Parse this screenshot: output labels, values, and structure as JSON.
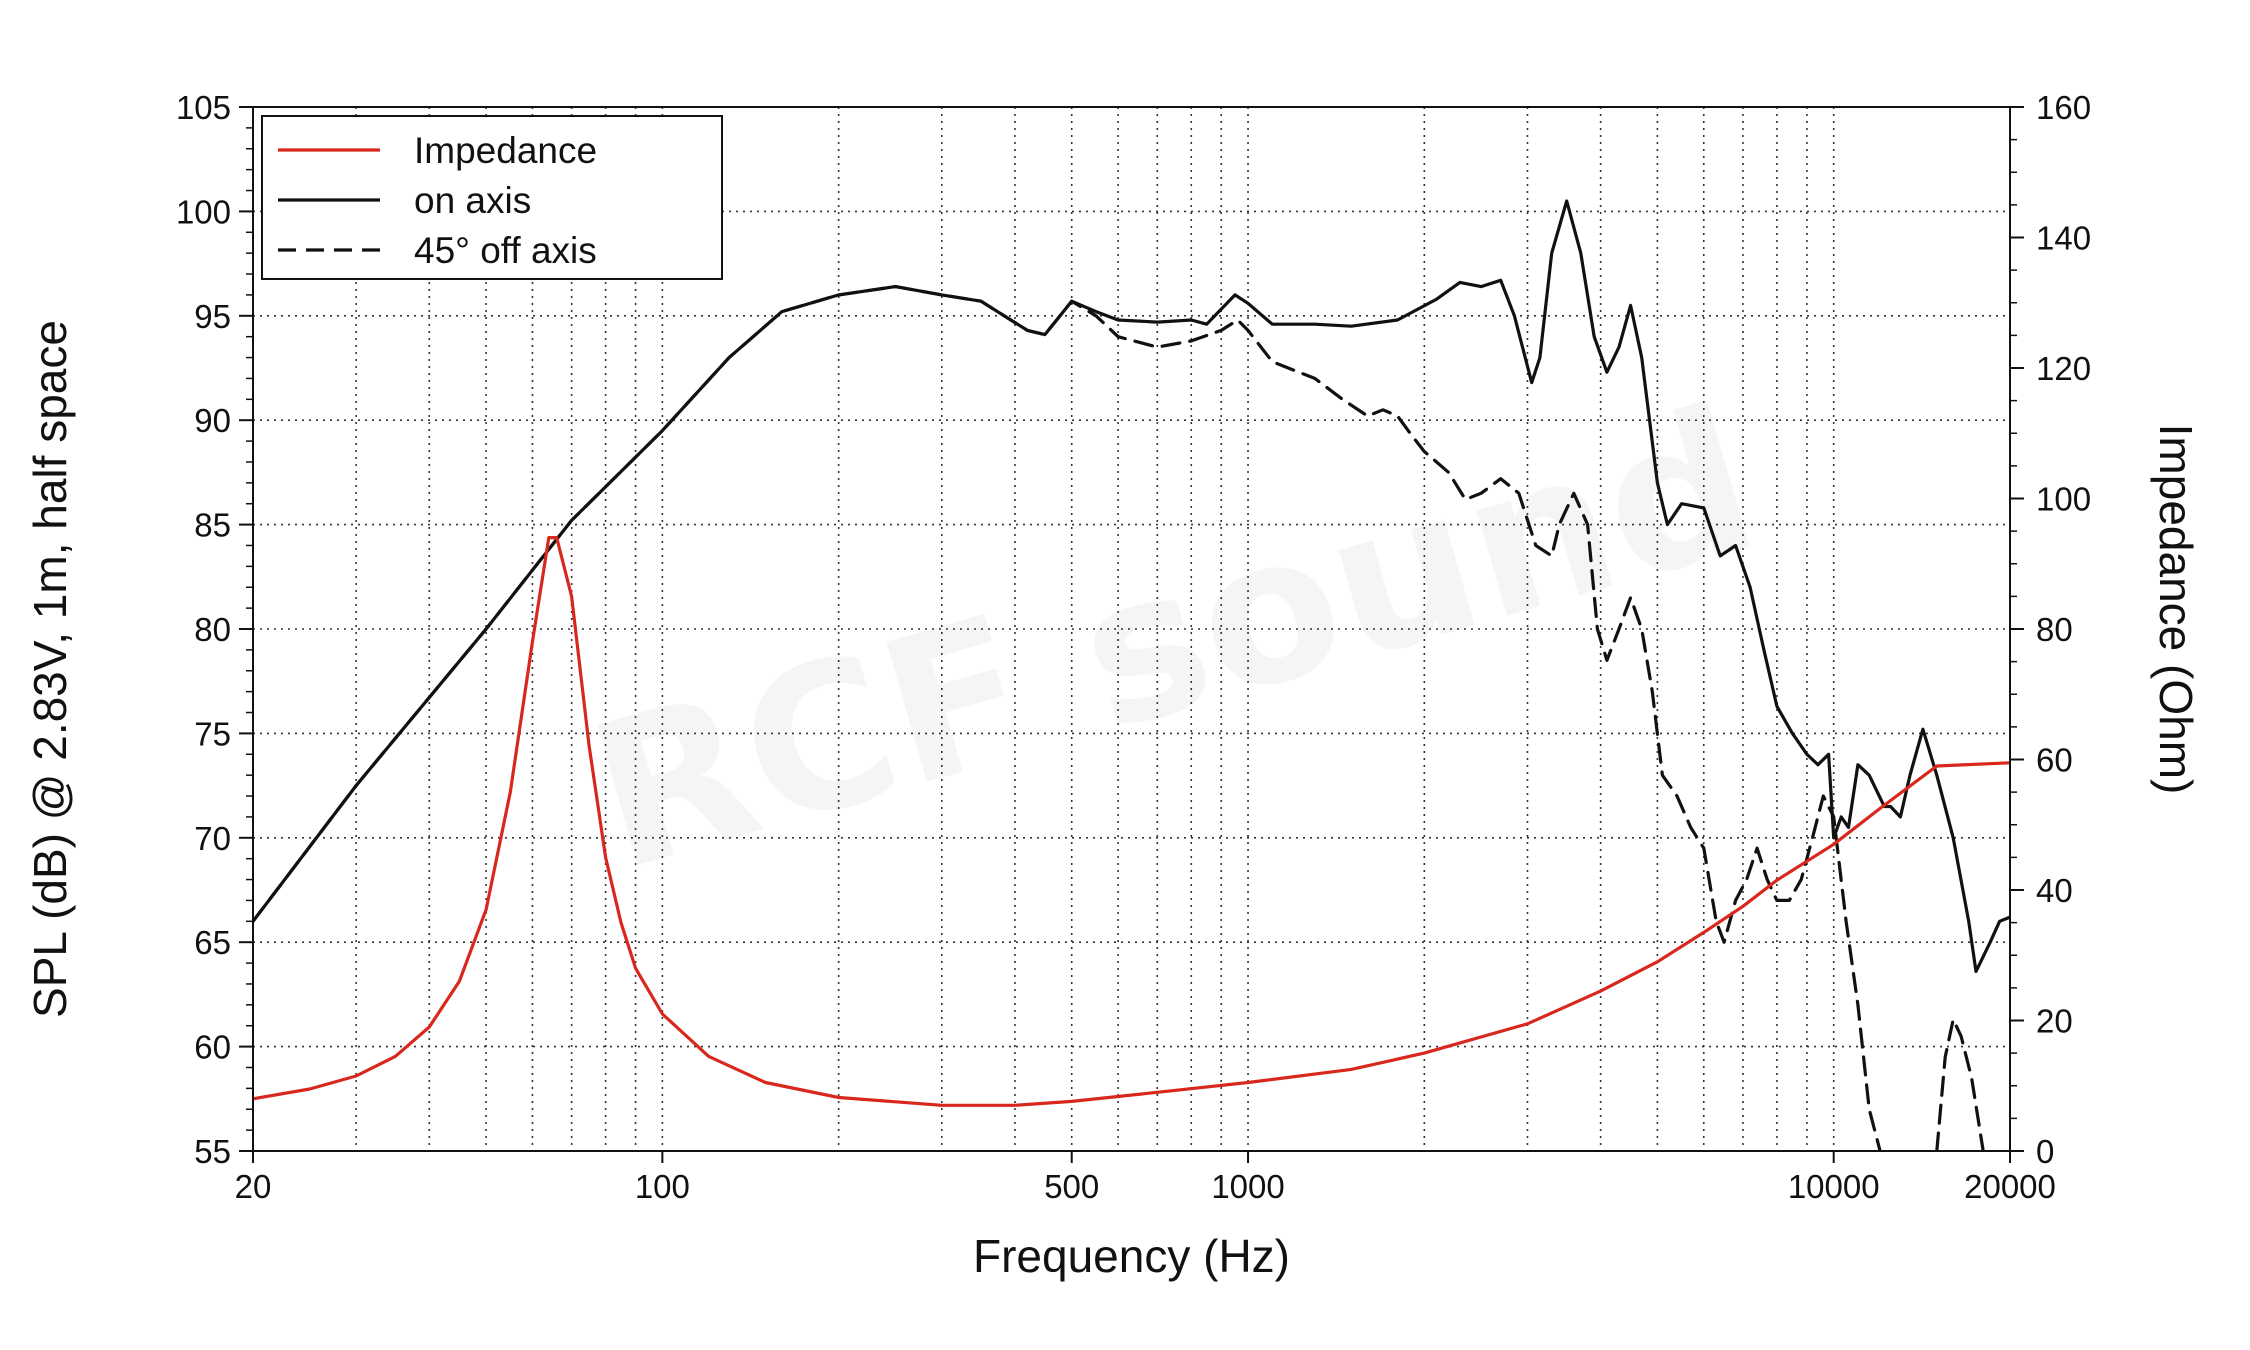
{
  "chart_data": {
    "type": "line",
    "xlabel": "Frequency (Hz)",
    "ylabel": "SPL (dB) @ 2.83V, 1m, half space",
    "y2label": "Impedance (Ohm)",
    "xscale": "log",
    "xlim": [
      20,
      20000
    ],
    "ylim": [
      55,
      105
    ],
    "y2lim": [
      0,
      160
    ],
    "xticks": [
      20,
      100,
      500,
      1000,
      10000,
      20000
    ],
    "yticks": [
      55,
      60,
      65,
      70,
      75,
      80,
      85,
      90,
      95,
      100,
      105
    ],
    "y2ticks": [
      0,
      20,
      40,
      60,
      80,
      100,
      120,
      140,
      160
    ],
    "grid": true,
    "legend_position": "top-left",
    "watermark": "RCF sound",
    "series": [
      {
        "name": "Impedance",
        "axis": "right",
        "color": "#d8281e",
        "style": "solid",
        "points": [
          [
            20,
            8
          ],
          [
            25,
            9.5
          ],
          [
            30,
            11.5
          ],
          [
            35,
            14.5
          ],
          [
            40,
            19
          ],
          [
            45,
            26
          ],
          [
            50,
            37
          ],
          [
            55,
            55
          ],
          [
            60,
            78
          ],
          [
            64,
            94
          ],
          [
            66,
            94
          ],
          [
            70,
            85
          ],
          [
            75,
            62
          ],
          [
            80,
            45
          ],
          [
            85,
            35
          ],
          [
            90,
            28
          ],
          [
            100,
            21
          ],
          [
            120,
            14.5
          ],
          [
            150,
            10.5
          ],
          [
            200,
            8.2
          ],
          [
            300,
            7
          ],
          [
            400,
            7
          ],
          [
            500,
            7.6
          ],
          [
            700,
            9
          ],
          [
            1000,
            10.5
          ],
          [
            1500,
            12.5
          ],
          [
            2000,
            15
          ],
          [
            3000,
            19.5
          ],
          [
            4000,
            24.5
          ],
          [
            5000,
            29
          ],
          [
            6000,
            33.5
          ],
          [
            7000,
            37.5
          ],
          [
            8000,
            41.5
          ],
          [
            10000,
            47
          ],
          [
            12000,
            52.5
          ],
          [
            15000,
            59
          ],
          [
            20000,
            59.5
          ]
        ]
      },
      {
        "name": "on axis",
        "axis": "left",
        "color": "#111111",
        "style": "solid",
        "points": [
          [
            20,
            66
          ],
          [
            30,
            72.5
          ],
          [
            50,
            80
          ],
          [
            70,
            85.2
          ],
          [
            100,
            89.5
          ],
          [
            130,
            93
          ],
          [
            160,
            95.2
          ],
          [
            200,
            96
          ],
          [
            250,
            96.4
          ],
          [
            300,
            96
          ],
          [
            350,
            95.7
          ],
          [
            420,
            94.3
          ],
          [
            450,
            94.1
          ],
          [
            500,
            95.7
          ],
          [
            550,
            95.2
          ],
          [
            600,
            94.8
          ],
          [
            700,
            94.7
          ],
          [
            800,
            94.8
          ],
          [
            850,
            94.6
          ],
          [
            950,
            96
          ],
          [
            1000,
            95.6
          ],
          [
            1100,
            94.6
          ],
          [
            1300,
            94.6
          ],
          [
            1500,
            94.5
          ],
          [
            1800,
            94.8
          ],
          [
            2100,
            95.8
          ],
          [
            2300,
            96.6
          ],
          [
            2500,
            96.4
          ],
          [
            2700,
            96.7
          ],
          [
            2850,
            95
          ],
          [
            3050,
            91.8
          ],
          [
            3150,
            93
          ],
          [
            3300,
            98
          ],
          [
            3500,
            100.5
          ],
          [
            3700,
            98
          ],
          [
            3900,
            94
          ],
          [
            4100,
            92.3
          ],
          [
            4300,
            93.5
          ],
          [
            4500,
            95.5
          ],
          [
            4700,
            93
          ],
          [
            5000,
            87
          ],
          [
            5200,
            85
          ],
          [
            5500,
            86
          ],
          [
            6000,
            85.8
          ],
          [
            6400,
            83.5
          ],
          [
            6800,
            84
          ],
          [
            7200,
            82
          ],
          [
            7600,
            79
          ],
          [
            8000,
            76.3
          ],
          [
            8500,
            75
          ],
          [
            9000,
            74
          ],
          [
            9400,
            73.5
          ],
          [
            9800,
            74
          ],
          [
            10000,
            70
          ],
          [
            10300,
            71
          ],
          [
            10600,
            70.5
          ],
          [
            11000,
            73.5
          ],
          [
            11500,
            73
          ],
          [
            12200,
            71.5
          ],
          [
            12500,
            71.5
          ],
          [
            13000,
            71
          ],
          [
            13500,
            73
          ],
          [
            14200,
            75.2
          ],
          [
            15000,
            73
          ],
          [
            16000,
            70
          ],
          [
            17000,
            66
          ],
          [
            17500,
            63.6
          ],
          [
            18500,
            65
          ],
          [
            19200,
            66
          ],
          [
            20000,
            66.2
          ]
        ]
      },
      {
        "name": "45° off axis",
        "axis": "left",
        "color": "#111111",
        "style": "dashed",
        "points": [
          [
            20,
            66
          ],
          [
            30,
            72.5
          ],
          [
            50,
            80
          ],
          [
            70,
            85.2
          ],
          [
            100,
            89.5
          ],
          [
            130,
            93
          ],
          [
            160,
            95.2
          ],
          [
            200,
            96
          ],
          [
            250,
            96.4
          ],
          [
            300,
            96
          ],
          [
            350,
            95.7
          ],
          [
            420,
            94.3
          ],
          [
            450,
            94.1
          ],
          [
            500,
            95.7
          ],
          [
            550,
            95
          ],
          [
            600,
            94
          ],
          [
            700,
            93.5
          ],
          [
            800,
            93.8
          ],
          [
            900,
            94.3
          ],
          [
            960,
            94.8
          ],
          [
            1000,
            94.3
          ],
          [
            1100,
            92.8
          ],
          [
            1300,
            92
          ],
          [
            1450,
            91
          ],
          [
            1600,
            90.2
          ],
          [
            1700,
            90.5
          ],
          [
            1800,
            90.2
          ],
          [
            1900,
            89.3
          ],
          [
            2000,
            88.5
          ],
          [
            2200,
            87.5
          ],
          [
            2350,
            86.2
          ],
          [
            2500,
            86.5
          ],
          [
            2700,
            87.2
          ],
          [
            2900,
            86.5
          ],
          [
            3100,
            84
          ],
          [
            3300,
            83.5
          ],
          [
            3400,
            85
          ],
          [
            3600,
            86.5
          ],
          [
            3800,
            85
          ],
          [
            3950,
            80
          ],
          [
            4100,
            78.5
          ],
          [
            4300,
            80
          ],
          [
            4500,
            81.5
          ],
          [
            4700,
            80
          ],
          [
            4900,
            77
          ],
          [
            5100,
            73
          ],
          [
            5400,
            72
          ],
          [
            5700,
            70.5
          ],
          [
            6000,
            69.5
          ],
          [
            6300,
            66
          ],
          [
            6500,
            65
          ],
          [
            6800,
            67
          ],
          [
            7100,
            68
          ],
          [
            7400,
            69.5
          ],
          [
            7700,
            68
          ],
          [
            8000,
            67
          ],
          [
            8400,
            67
          ],
          [
            8800,
            68
          ],
          [
            9200,
            70
          ],
          [
            9600,
            72
          ],
          [
            10000,
            71
          ],
          [
            10500,
            66
          ],
          [
            11000,
            62
          ],
          [
            11500,
            57
          ],
          [
            12000,
            55
          ]
        ]
      },
      {
        "name": "45° off axis (segment)",
        "axis": "left",
        "color": "#111111",
        "style": "dashed",
        "points": [
          [
            15000,
            55
          ],
          [
            15500,
            59.5
          ],
          [
            16000,
            61.3
          ],
          [
            16500,
            60.5
          ],
          [
            17200,
            58.5
          ],
          [
            18000,
            55
          ]
        ]
      }
    ]
  }
}
